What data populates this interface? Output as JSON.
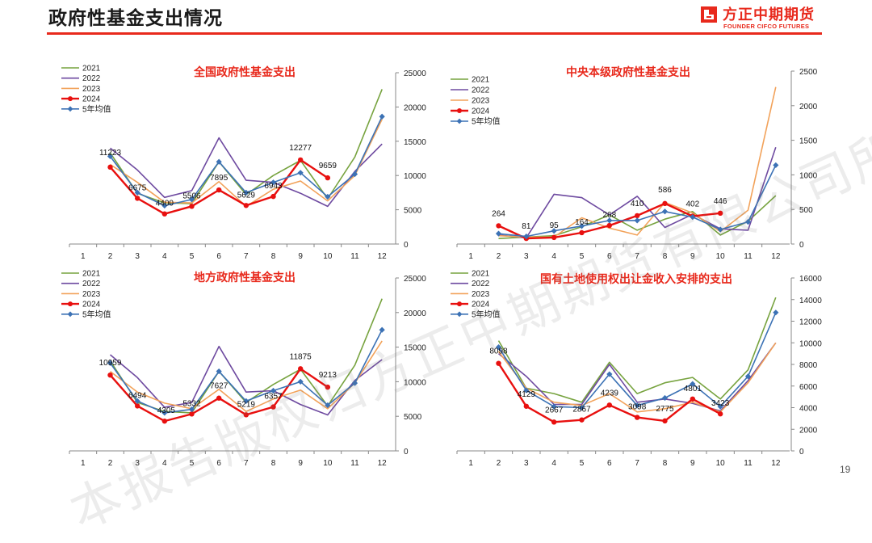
{
  "header": {
    "title": "政府性基金支出情况",
    "logo_cn": "方正中期期货",
    "logo_en": "FOUNDER CIFCO FUTURES",
    "accent": "#e8291c"
  },
  "page_number": "19",
  "watermark": "本报告版权归方正中期期货有限公司所有",
  "colors": {
    "2021": "#77a33f",
    "2022": "#6e4aa0",
    "2023": "#f2a25a",
    "2024": "#e8100f",
    "5年均值": "#3c72b5"
  },
  "chart_data": [
    {
      "type": "line",
      "title": "全国政府性基金支出",
      "x": [
        1,
        2,
        3,
        4,
        5,
        6,
        7,
        8,
        9,
        10,
        11,
        12
      ],
      "ylim": [
        0,
        25000
      ],
      "yticks": [
        0,
        5000,
        10000,
        15000,
        20000,
        25000
      ],
      "series": [
        {
          "name": "2021",
          "values": [
            null,
            13300,
            7400,
            6000,
            5900,
            12000,
            7200,
            10000,
            12200,
            6600,
            12700,
            22600
          ]
        },
        {
          "name": "2022",
          "values": [
            null,
            14000,
            10800,
            6800,
            7800,
            15500,
            9300,
            9000,
            7400,
            5500,
            10600,
            14600
          ]
        },
        {
          "name": "2023",
          "values": [
            null,
            11600,
            9000,
            6100,
            6000,
            9100,
            5500,
            8000,
            9200,
            6300,
            10000,
            18200
          ]
        },
        {
          "name": "2024",
          "values": [
            null,
            11223,
            6675,
            4400,
            5506,
            7895,
            5629,
            6943,
            12277,
            9659,
            null,
            null
          ],
          "labels": [
            "",
            "11223",
            "6675",
            "4400",
            "5506",
            "7895",
            "5629",
            "6943",
            "12277",
            "9659",
            "",
            ""
          ]
        },
        {
          "name": "5年均值",
          "values": [
            null,
            12800,
            7500,
            5600,
            6500,
            12000,
            7500,
            9000,
            10400,
            6900,
            10200,
            18600
          ]
        }
      ]
    },
    {
      "type": "line",
      "title": "中央本级政府性基金支出",
      "x": [
        1,
        2,
        3,
        4,
        5,
        6,
        7,
        8,
        9,
        10,
        11,
        12
      ],
      "ylim": [
        0,
        2500
      ],
      "yticks": [
        0,
        500,
        1000,
        1500,
        2000,
        2500
      ],
      "series": [
        {
          "name": "2021",
          "values": [
            null,
            80,
            100,
            120,
            250,
            420,
            200,
            360,
            470,
            130,
            330,
            700
          ]
        },
        {
          "name": "2022",
          "values": [
            null,
            130,
            90,
            720,
            670,
            420,
            690,
            240,
            430,
            220,
            200,
            1400
          ]
        },
        {
          "name": "2023",
          "values": [
            null,
            120,
            100,
            100,
            380,
            230,
            130,
            600,
            450,
            180,
            490,
            2270
          ]
        },
        {
          "name": "2024",
          "values": [
            null,
            264,
            81,
            95,
            164,
            268,
            410,
            586,
            402,
            446,
            null,
            null
          ],
          "labels": [
            "",
            "264",
            "81",
            "95",
            "164",
            "268",
            "410",
            "586",
            "402",
            "446",
            "",
            ""
          ]
        },
        {
          "name": "5年均值",
          "values": [
            null,
            150,
            110,
            190,
            260,
            340,
            340,
            470,
            390,
            210,
            320,
            1140
          ]
        }
      ]
    },
    {
      "type": "line",
      "title": "地方政府性基金支出",
      "x": [
        1,
        2,
        3,
        4,
        5,
        6,
        7,
        8,
        9,
        10,
        11,
        12
      ],
      "ylim": [
        0,
        25000
      ],
      "yticks": [
        0,
        5000,
        10000,
        15000,
        20000,
        25000
      ],
      "series": [
        {
          "name": "2021",
          "values": [
            null,
            13000,
            7000,
            5700,
            5500,
            11500,
            7000,
            9600,
            11800,
            6500,
            12400,
            22000
          ]
        },
        {
          "name": "2022",
          "values": [
            null,
            13900,
            10600,
            6300,
            7000,
            15100,
            8500,
            8700,
            6700,
            5200,
            10200,
            13200
          ]
        },
        {
          "name": "2023",
          "values": [
            null,
            11500,
            8500,
            6900,
            6100,
            8900,
            5700,
            7500,
            8800,
            6100,
            9800,
            15900
          ]
        },
        {
          "name": "2024",
          "values": [
            null,
            10959,
            6494,
            4305,
            5332,
            7627,
            5219,
            6357,
            11875,
            9213,
            null,
            null
          ],
          "labels": [
            "",
            "10959",
            "6494",
            "4305",
            "5332",
            "7627",
            "5219",
            "6357",
            "11875",
            "9213",
            "",
            ""
          ]
        },
        {
          "name": "5年均值",
          "values": [
            null,
            12700,
            7200,
            5500,
            6000,
            11500,
            7200,
            8700,
            10000,
            6600,
            9800,
            17500
          ]
        }
      ]
    },
    {
      "type": "line",
      "title": "国有土地使用权出让金收入安排的支出",
      "x": [
        1,
        2,
        3,
        4,
        5,
        6,
        7,
        8,
        9,
        10,
        11,
        12
      ],
      "ylim": [
        0,
        16000
      ],
      "yticks": [
        0,
        2000,
        4000,
        6000,
        8000,
        10000,
        12000,
        14000,
        16000
      ],
      "series": [
        {
          "name": "2021",
          "values": [
            null,
            10200,
            5800,
            5300,
            4500,
            8200,
            5300,
            6300,
            6800,
            4800,
            7500,
            14200
          ]
        },
        {
          "name": "2022",
          "values": [
            null,
            9000,
            6900,
            4300,
            4300,
            8000,
            4500,
            4800,
            4400,
            3700,
            6500,
            10000
          ]
        },
        {
          "name": "2023",
          "values": [
            null,
            9200,
            5800,
            4500,
            4200,
            5300,
            3600,
            3900,
            4500,
            3600,
            6300,
            10000
          ]
        },
        {
          "name": "2024",
          "values": [
            null,
            8098,
            4129,
            2667,
            2867,
            4239,
            3098,
            2775,
            4801,
            3423,
            null,
            null
          ],
          "labels": [
            "",
            "8098",
            "4129",
            "2667",
            "2867",
            "4239",
            "3098",
            "2775",
            "4801",
            "3423",
            "",
            ""
          ]
        },
        {
          "name": "5年均值",
          "values": [
            null,
            9600,
            5600,
            4100,
            4000,
            7100,
            4200,
            4900,
            6200,
            4100,
            6900,
            12800
          ]
        }
      ]
    }
  ]
}
